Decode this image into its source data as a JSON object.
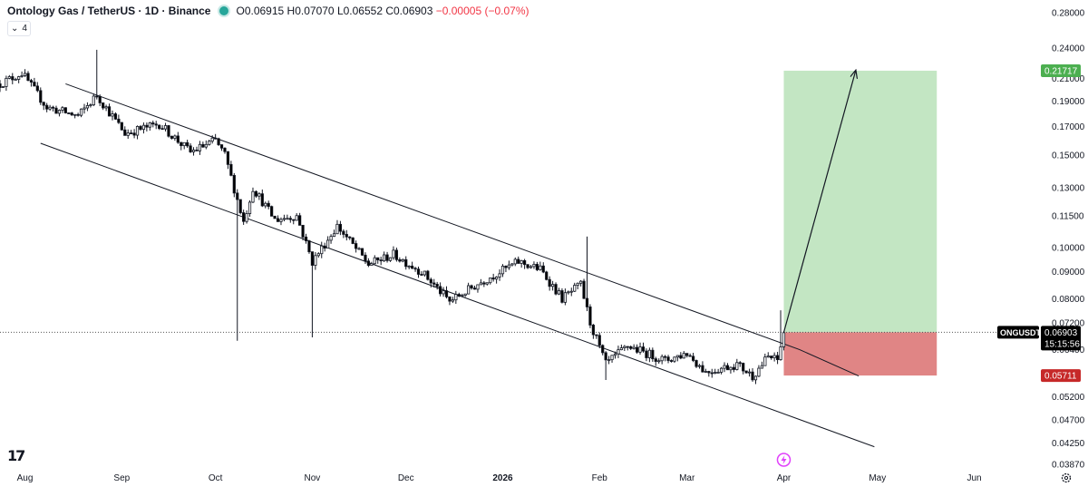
{
  "header": {
    "symbol_title": "Ontology Gas / TetherUS · 1D · Binance",
    "open": "O0.06915",
    "high": "H0.07070",
    "low": "L0.06552",
    "close": "C0.06903",
    "change": "−0.00005 (−0.07%)"
  },
  "indicator_toggle": {
    "label": "4"
  },
  "logo_text": "17",
  "colors": {
    "candle_up": "#ffffff",
    "candle_down": "#000000",
    "target_zone": "#c3e6c3",
    "stop_zone": "#e08585",
    "target_badge": "#4caf50",
    "stop_badge": "#c62828",
    "price_badge": "#000000"
  },
  "icons": {
    "alert": "lightning-bolt-icon",
    "settings": "gear-icon"
  },
  "chart_data": {
    "type": "candlestick",
    "title": "Ontology Gas / TetherUS · 1D · Binance",
    "y_axis_ticks": [
      0.28,
      0.24,
      0.21,
      0.19,
      0.17,
      0.15,
      0.13,
      0.115,
      0.1,
      0.09,
      0.08,
      0.072,
      0.064,
      0.052,
      0.047,
      0.0425,
      0.0387
    ],
    "y_axis_tick_labels": [
      "0.28000",
      "0.24000",
      "0.21000",
      "0.19000",
      "0.17000",
      "0.15000",
      "0.13000",
      "0.11500",
      "0.10000",
      "0.09000",
      "0.08000",
      "0.07200",
      "0.06400",
      "0.05200",
      "0.04700",
      "0.04250",
      "0.03870"
    ],
    "x_axis_labels": [
      "Aug",
      "Sep",
      "Oct",
      "Nov",
      "Dec",
      "2026",
      "Feb",
      "Mar",
      "Apr",
      "May",
      "Jun"
    ],
    "y_scale": "log",
    "y_range": [
      0.0387,
      0.28
    ],
    "x_range": [
      "2025-07-24",
      "2026-06-20"
    ],
    "grid": false,
    "current_price": {
      "symbol": "ONGUSDT",
      "price": "0.06903",
      "countdown": "15:15:56",
      "value": 0.06903
    },
    "target_level": {
      "label": "0.21717",
      "value": 0.21717
    },
    "stop_level": {
      "label": "0.05711",
      "value": 0.05711
    },
    "trade_zone": {
      "start": "2026-04-01",
      "end": "2026-05-20",
      "entry": 0.06903,
      "target": 0.21717,
      "stop": 0.05711
    },
    "channel_upper": [
      [
        "2025-08-14",
        0.205
      ],
      [
        "2026-04-06",
        0.064
      ],
      [
        "2026-04-25",
        0.057
      ]
    ],
    "channel_lower": [
      [
        "2025-08-06",
        0.158
      ],
      [
        "2026-04-30",
        0.0418
      ]
    ],
    "projection_arrow": [
      [
        "2026-04-01",
        0.069
      ],
      [
        "2026-04-24",
        0.217
      ]
    ],
    "anchor_points": [
      [
        "2025-07-24",
        0.205
      ],
      [
        "2025-07-31",
        0.215
      ],
      [
        "2025-08-08",
        0.185
      ],
      [
        "2025-08-18",
        0.178
      ],
      [
        "2025-08-24",
        0.195
      ],
      [
        "2025-09-02",
        0.165
      ],
      [
        "2025-09-13",
        0.172
      ],
      [
        "2025-09-23",
        0.152
      ],
      [
        "2025-10-01",
        0.16
      ],
      [
        "2025-10-04",
        0.15
      ],
      [
        "2025-10-10",
        0.112
      ],
      [
        "2025-10-13",
        0.13
      ],
      [
        "2025-10-20",
        0.113
      ],
      [
        "2025-10-27",
        0.115
      ],
      [
        "2025-11-01",
        0.094
      ],
      [
        "2025-11-09",
        0.11
      ],
      [
        "2025-11-19",
        0.093
      ],
      [
        "2025-11-27",
        0.097
      ],
      [
        "2025-12-06",
        0.09
      ],
      [
        "2025-12-15",
        0.079
      ],
      [
        "2025-12-25",
        0.086
      ],
      [
        "2026-01-06",
        0.094
      ],
      [
        "2026-01-13",
        0.091
      ],
      [
        "2026-01-20",
        0.08
      ],
      [
        "2026-01-26",
        0.085
      ],
      [
        "2026-01-29",
        0.072
      ],
      [
        "2026-02-03",
        0.06
      ],
      [
        "2026-02-10",
        0.065
      ],
      [
        "2026-02-22",
        0.061
      ],
      [
        "2026-03-01",
        0.063
      ],
      [
        "2026-03-07",
        0.058
      ],
      [
        "2026-03-17",
        0.06
      ],
      [
        "2026-03-22",
        0.057
      ],
      [
        "2026-03-27",
        0.062
      ],
      [
        "2026-03-30",
        0.061
      ],
      [
        "2026-04-01",
        0.069
      ]
    ],
    "wick_spikes": [
      [
        "2025-08-24",
        0.238
      ],
      [
        "2025-10-08",
        0.0665
      ],
      [
        "2025-11-01",
        0.0675
      ],
      [
        "2026-01-28",
        0.105
      ],
      [
        "2026-02-03",
        0.056
      ],
      [
        "2026-03-31",
        0.076
      ]
    ]
  }
}
